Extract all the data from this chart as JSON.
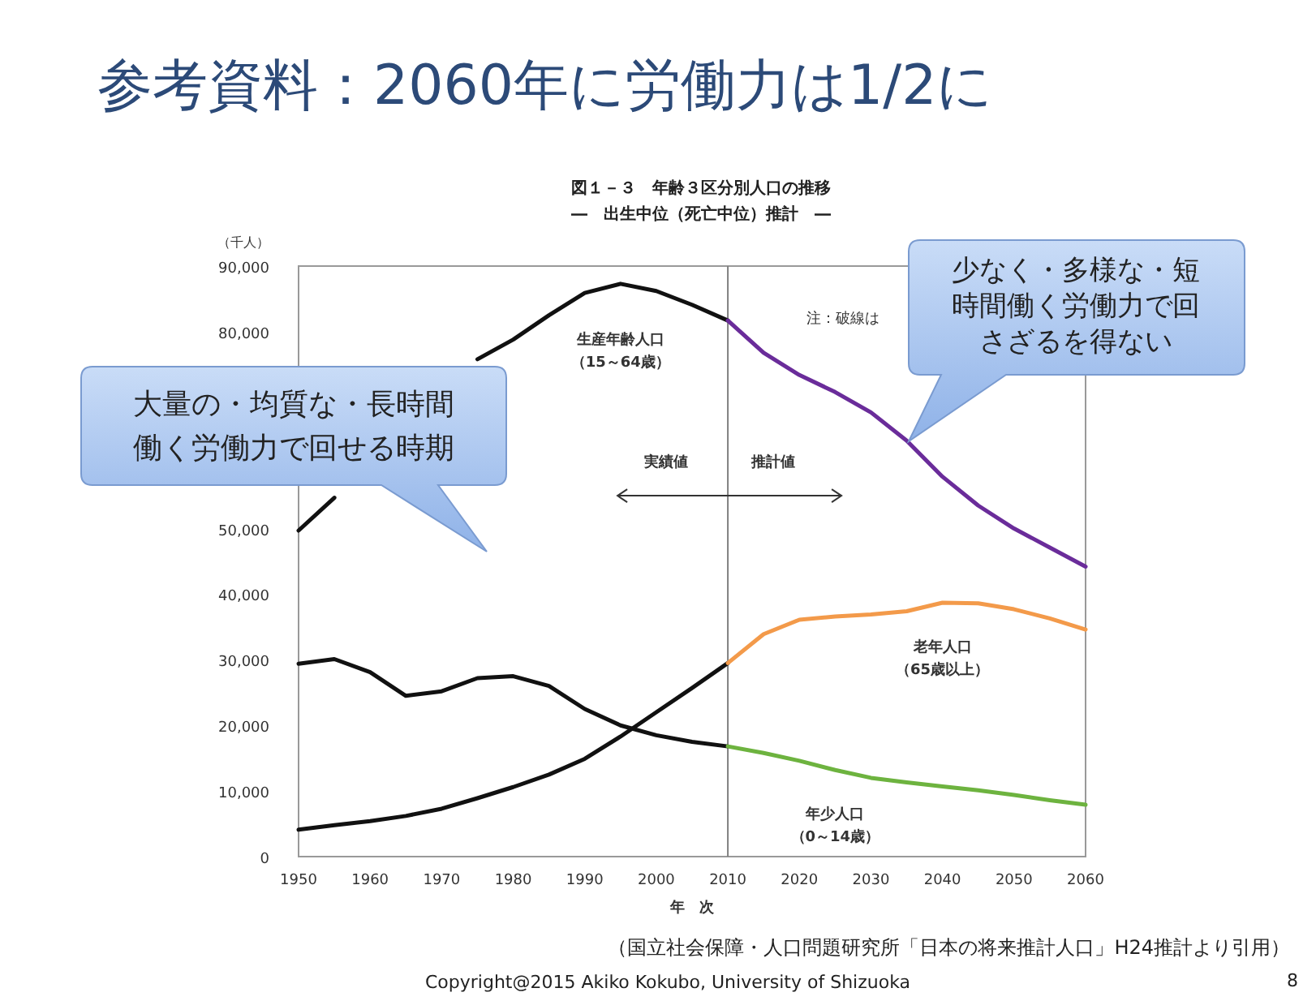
{
  "chart_data": {
    "type": "line",
    "title": "参考資料：2060年に労働力は1/2に",
    "subtitle": "図１－３　年齢３区分別人口の推移\n―　出生中位（死亡中位）推計　―",
    "xlabel": "年　次",
    "ylabel": "（千人）",
    "xlim": [
      1950,
      2060
    ],
    "xticks": [
      1950,
      1960,
      1970,
      1980,
      1990,
      2000,
      2010,
      2020,
      2030,
      2040,
      2050,
      2060
    ],
    "ylim": [
      0,
      90000
    ],
    "yticks": [
      0,
      {
        "value": 10000,
        "label": "10,000"
      },
      {
        "value": 20000,
        "label": "20,000"
      },
      {
        "value": 30000,
        "label": "30,000"
      },
      {
        "value": 40000,
        "label": "40,000"
      },
      {
        "value": 50000,
        "label": "50,000"
      },
      {
        "value": 80000,
        "label": "80,000"
      },
      {
        "value": 90000,
        "label": "90,000"
      }
    ],
    "grid": false,
    "line_style": "solid",
    "ref_lines": [
      {
        "axis": "x",
        "value": 2010,
        "color": "#808080"
      }
    ],
    "series": [
      {
        "name": "生産年齢人口（15～64歳）",
        "color": "#111111",
        "x": [
          1950,
          1955,
          1960,
          1965,
          1970,
          1975,
          1980,
          1985,
          1990,
          1995,
          2000,
          2005,
          2010
        ],
        "values": [
          49700,
          54700,
          null,
          null,
          null,
          75800,
          78800,
          82500,
          85900,
          87300,
          86200,
          84100,
          81700
        ]
      },
      {
        "color": "#6a2c9a",
        "x": [
          2010,
          2015,
          2020,
          2025,
          2030,
          2035,
          2040,
          2045,
          2050,
          2055,
          2060
        ],
        "values": [
          81700,
          76800,
          73400,
          70800,
          67700,
          63400,
          57900,
          53500,
          50000,
          47100,
          44200
        ]
      },
      {
        "color": "#111111",
        "x": [
          1950,
          1955,
          1960,
          1965,
          1970,
          1975,
          1980,
          1985,
          1990,
          1995,
          2000,
          2005,
          2010
        ],
        "values": [
          4100,
          4800,
          5400,
          6200,
          7300,
          8900,
          10600,
          12500,
          14900,
          18300,
          22000,
          25700,
          29500
        ]
      },
      {
        "name": "老年人口（65歳以上）",
        "color": "#f39a4a",
        "x": [
          2010,
          2015,
          2020,
          2025,
          2030,
          2035,
          2040,
          2045,
          2050,
          2055,
          2060
        ],
        "values": [
          29500,
          33900,
          36100,
          36600,
          36900,
          37400,
          38700,
          38600,
          37700,
          36300,
          34600
        ]
      },
      {
        "color": "#111111",
        "x": [
          1950,
          1955,
          1960,
          1965,
          1970,
          1975,
          1980,
          1985,
          1990,
          1995,
          2000,
          2005,
          2010
        ],
        "values": [
          29400,
          30100,
          28100,
          24500,
          25200,
          27200,
          27500,
          26000,
          22500,
          20000,
          18500,
          17500,
          16800
        ]
      },
      {
        "name": "年少人口（0～14歳）",
        "color": "#6db33f",
        "x": [
          2010,
          2015,
          2020,
          2025,
          2030,
          2035,
          2040,
          2045,
          2050,
          2055,
          2060
        ],
        "values": [
          16800,
          15800,
          14600,
          13200,
          12000,
          11300,
          10700,
          10100,
          9400,
          8600,
          7900
        ]
      }
    ],
    "annotations": [
      "実績値",
      "推計値",
      "注：破線は",
      "大量の・均質な・長時間働く労働力で回せる時期",
      "少なく・多様な・短時間働く労働力で回さざるを得ない",
      "（国立社会保障・人口問題研究所「日本の将来推計人口」H24推計より引用）",
      "Copyright@2015 Akiko Kokubo, University of Shizuoka",
      "8"
    ]
  }
}
